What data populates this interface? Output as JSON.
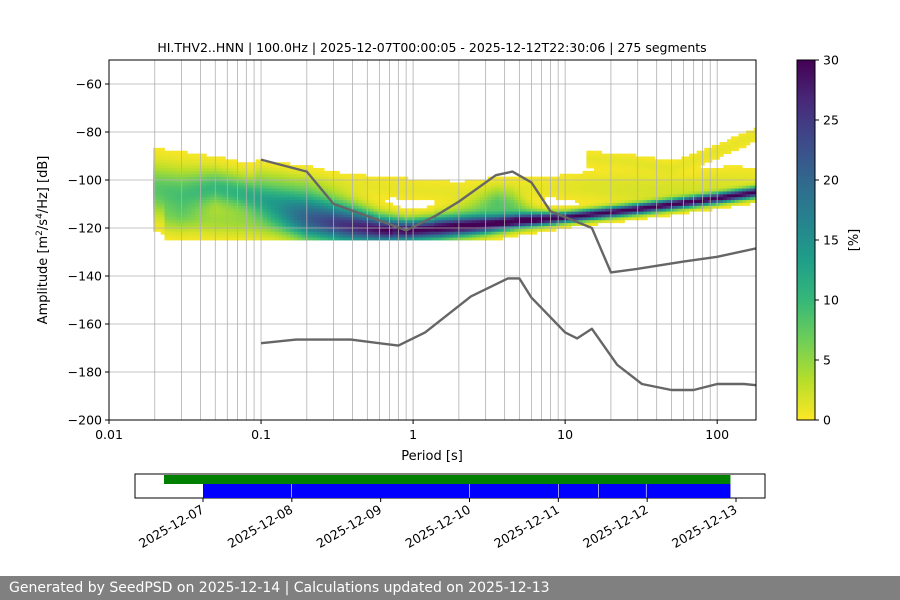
{
  "chart_data": {
    "type": "heatmap",
    "title": "HI.THV2..HNN | 100.0Hz | 2025-12-07T00:00:05 - 2025-12-12T22:30:06 | 275 segments",
    "xlabel": "Period [s]",
    "ylabel_prefix": "Amplitude [m",
    "ylabel_mid": "/s",
    "ylabel_suffix": "/Hz] [dB]",
    "ylabel_sup1": "2",
    "ylabel_sup2": "4",
    "x_scale": "log",
    "xlim": [
      0.01,
      180
    ],
    "ylim": [
      -200,
      -50
    ],
    "x_ticks": [
      {
        "value": 0.01,
        "label": "0.01"
      },
      {
        "value": 0.1,
        "label": "0.1"
      },
      {
        "value": 1,
        "label": "1"
      },
      {
        "value": 10,
        "label": "10"
      },
      {
        "value": 100,
        "label": "100"
      }
    ],
    "y_ticks": [
      -60,
      -80,
      -100,
      -120,
      -140,
      -160,
      -180,
      -200
    ],
    "y_tick_labels": [
      "−60",
      "−80",
      "−100",
      "−120",
      "−140",
      "−160",
      "−180",
      "−200"
    ],
    "grid": true,
    "colormap": "viridis_r",
    "colorbar": {
      "label": "[%]",
      "range": [
        0,
        30
      ],
      "ticks": [
        0,
        5,
        10,
        15,
        20,
        25,
        30
      ],
      "colors": [
        "#fde725",
        "#b5de2b",
        "#6ece58",
        "#35b779",
        "#1f9e89",
        "#26828e",
        "#31688e",
        "#3e4989",
        "#482878",
        "#440154"
      ]
    },
    "density_bands": [
      {
        "name": "main",
        "points": [
          [
            0.02,
            -104,
            7,
            8
          ],
          [
            0.03,
            -106,
            7,
            9
          ],
          [
            0.05,
            -103,
            5,
            10
          ],
          [
            0.08,
            -106,
            5,
            11
          ],
          [
            0.13,
            -110,
            6,
            14
          ],
          [
            0.2,
            -114,
            7,
            18
          ],
          [
            0.35,
            -118,
            6,
            22
          ],
          [
            0.6,
            -120.5,
            4,
            26
          ],
          [
            0.9,
            -121,
            3,
            30
          ],
          [
            1.5,
            -120,
            3,
            30
          ],
          [
            3,
            -118.5,
            2.5,
            30
          ],
          [
            5,
            -117,
            2,
            30
          ],
          [
            10,
            -115.5,
            1.5,
            30
          ],
          [
            30,
            -112,
            1.5,
            30
          ],
          [
            100,
            -107.5,
            1.5,
            30
          ],
          [
            180,
            -105,
            1.5,
            30
          ]
        ]
      },
      {
        "name": "lower-cloud",
        "points": [
          [
            0.025,
            -116,
            4,
            3
          ],
          [
            0.05,
            -117,
            4,
            4
          ],
          [
            0.1,
            -118,
            4,
            4
          ],
          [
            0.2,
            -119,
            4,
            5
          ],
          [
            0.4,
            -120,
            3,
            4
          ],
          [
            0.7,
            -121,
            2,
            3
          ]
        ]
      },
      {
        "name": "microseism",
        "points": [
          [
            1.5,
            -116,
            3,
            2
          ],
          [
            2.5,
            -113,
            4,
            5
          ],
          [
            3.5,
            -110,
            4,
            8
          ],
          [
            4.5,
            -111,
            4,
            7
          ],
          [
            6,
            -114,
            3,
            4
          ],
          [
            8,
            -116,
            2,
            2
          ]
        ]
      },
      {
        "name": "upper-yellow",
        "points": [
          [
            0.1,
            -98,
            3,
            1.5
          ],
          [
            0.2,
            -101,
            3,
            1.2
          ],
          [
            0.4,
            -102,
            3,
            1
          ],
          [
            0.7,
            -103,
            3,
            1
          ],
          [
            1.2,
            -104,
            3,
            1
          ],
          [
            2,
            -105,
            3,
            1
          ],
          [
            4,
            -104,
            3,
            1.2
          ],
          [
            8,
            -103,
            3,
            1
          ],
          [
            15,
            -103,
            4,
            1.5
          ],
          [
            30,
            -104,
            5,
            1.8
          ],
          [
            60,
            -104,
            4,
            2
          ],
          [
            120,
            -101,
            4,
            1.5
          ],
          [
            180,
            -99,
            3,
            1
          ]
        ]
      },
      {
        "name": "yellow-tail",
        "points": [
          [
            15,
            -91,
            2,
            1
          ],
          [
            25,
            -92,
            2,
            1
          ],
          [
            50,
            -95,
            2,
            1
          ],
          [
            100,
            -88,
            2,
            1
          ],
          [
            180,
            -81,
            2,
            1
          ]
        ]
      }
    ],
    "series": [
      {
        "values": [
          [
            0.1,
            -91.5
          ],
          [
            0.2,
            -96.5
          ],
          [
            0.3,
            -110
          ],
          [
            0.5,
            -115
          ],
          [
            0.9,
            -121
          ],
          [
            1.4,
            -115
          ],
          [
            2,
            -109
          ],
          [
            3.5,
            -98
          ],
          [
            4.5,
            -96.5
          ],
          [
            6,
            -101
          ],
          [
            8,
            -113
          ],
          [
            15,
            -120
          ],
          [
            20,
            -138.5
          ],
          [
            30,
            -137
          ],
          [
            60,
            -134
          ],
          [
            100,
            -132
          ],
          [
            180,
            -128.5
          ]
        ]
      },
      {
        "values": [
          [
            0.1,
            -168
          ],
          [
            0.17,
            -166.5
          ],
          [
            0.39,
            -166.5
          ],
          [
            0.8,
            -169
          ],
          [
            1.2,
            -163.5
          ],
          [
            2.4,
            -148.5
          ],
          [
            4.2,
            -141
          ],
          [
            5,
            -141
          ],
          [
            6,
            -149
          ],
          [
            10,
            -163.5
          ],
          [
            12,
            -166
          ],
          [
            15,
            -162
          ],
          [
            22,
            -177
          ],
          [
            32,
            -185
          ],
          [
            50,
            -187.5
          ],
          [
            70,
            -187.5
          ],
          [
            100,
            -185
          ],
          [
            150,
            -185
          ],
          [
            180,
            -185.5
          ]
        ]
      }
    ],
    "timeline": {
      "tick_labels": [
        "2025-12-07",
        "2025-12-08",
        "2025-12-09",
        "2025-12-10",
        "2025-12-11",
        "2025-12-12",
        "2025-12-13"
      ],
      "availability": [
        [
          "2025-12-07T00:00",
          "2025-12-12T22:30"
        ]
      ],
      "segments": [
        [
          "2025-12-07T00:00",
          "2025-12-07T23:50"
        ],
        [
          "2025-12-08T00:00",
          "2025-12-09T23:55"
        ],
        [
          "2025-12-10T00:05",
          "2025-12-10T23:55"
        ],
        [
          "2025-12-11T00:05",
          "2025-12-11T10:45"
        ],
        [
          "2025-12-11T10:55",
          "2025-12-11T23:40"
        ],
        [
          "2025-12-11T23:50",
          "2025-12-12T22:30"
        ]
      ]
    }
  },
  "footer": {
    "text": "Generated by SeedPSD on 2025-12-14 | Calculations updated on 2025-12-13"
  }
}
